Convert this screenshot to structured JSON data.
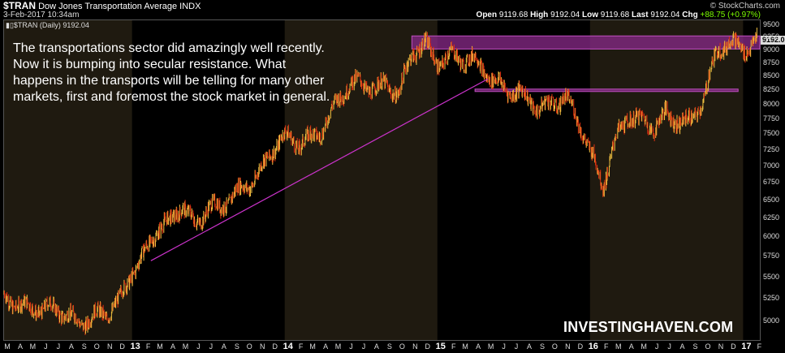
{
  "header": {
    "symbol": "$TRAN",
    "name": "Dow Jones Transportation Average",
    "exchange": "INDX",
    "date": "3-Feb-2017 10:34am",
    "brand": "© StockCharts.com",
    "open_label": "Open",
    "open": "9119.68",
    "high_label": "High",
    "high": "9192.04",
    "low_label": "Low",
    "low": "9119.68",
    "last_label": "Last",
    "last": "9192.04",
    "chg_label": "Chg",
    "chg": "+88.75 (+0.97%)"
  },
  "legend": "▮▯$TRAN (Daily) 9192.04",
  "annotation": "The transportations sector did amazingly well recently. Now it is bumping into secular resistance. What happens in the transports will be telling for many other markets, first and foremost the stock market in general.",
  "watermark": "INVESTINGHAVEN.COM",
  "last_value_box": "9192.0",
  "colors": {
    "background": "#000000",
    "shade": "#1f1a10",
    "bar_up": "#f0c040",
    "bar_down": "#e03010",
    "trendline": "#cc33cc",
    "resistance": "#8a2a8a"
  },
  "chart_data": {
    "type": "line",
    "title": "$TRAN (Daily)",
    "y_scale": "log",
    "ylim": [
      4800,
      9600
    ],
    "xlim": [
      "2012-03-01",
      "2017-02-10"
    ],
    "y_ticks": [
      5000,
      5250,
      5500,
      5750,
      6000,
      6250,
      6500,
      6750,
      7000,
      7250,
      7500,
      7750,
      8000,
      8250,
      8500,
      8750,
      9000,
      9250,
      9500
    ],
    "x_ticks": [
      {
        "label": "M",
        "date": "2012-03-01"
      },
      {
        "label": "A",
        "date": "2012-04-01"
      },
      {
        "label": "M",
        "date": "2012-05-01"
      },
      {
        "label": "J",
        "date": "2012-06-01"
      },
      {
        "label": "J",
        "date": "2012-07-01"
      },
      {
        "label": "A",
        "date": "2012-08-01"
      },
      {
        "label": "S",
        "date": "2012-09-01"
      },
      {
        "label": "O",
        "date": "2012-10-01"
      },
      {
        "label": "N",
        "date": "2012-11-01"
      },
      {
        "label": "D",
        "date": "2012-12-01"
      },
      {
        "label": "13",
        "date": "2013-01-01",
        "year": true
      },
      {
        "label": "F",
        "date": "2013-02-01"
      },
      {
        "label": "M",
        "date": "2013-03-01"
      },
      {
        "label": "A",
        "date": "2013-04-01"
      },
      {
        "label": "M",
        "date": "2013-05-01"
      },
      {
        "label": "J",
        "date": "2013-06-01"
      },
      {
        "label": "J",
        "date": "2013-07-01"
      },
      {
        "label": "A",
        "date": "2013-08-01"
      },
      {
        "label": "S",
        "date": "2013-09-01"
      },
      {
        "label": "O",
        "date": "2013-10-01"
      },
      {
        "label": "N",
        "date": "2013-11-01"
      },
      {
        "label": "D",
        "date": "2013-12-01"
      },
      {
        "label": "14",
        "date": "2014-01-01",
        "year": true
      },
      {
        "label": "F",
        "date": "2014-02-01"
      },
      {
        "label": "M",
        "date": "2014-03-01"
      },
      {
        "label": "A",
        "date": "2014-04-01"
      },
      {
        "label": "M",
        "date": "2014-05-01"
      },
      {
        "label": "J",
        "date": "2014-06-01"
      },
      {
        "label": "J",
        "date": "2014-07-01"
      },
      {
        "label": "A",
        "date": "2014-08-01"
      },
      {
        "label": "S",
        "date": "2014-09-01"
      },
      {
        "label": "O",
        "date": "2014-10-01"
      },
      {
        "label": "N",
        "date": "2014-11-01"
      },
      {
        "label": "D",
        "date": "2014-12-01"
      },
      {
        "label": "15",
        "date": "2015-01-01",
        "year": true
      },
      {
        "label": "F",
        "date": "2015-02-01"
      },
      {
        "label": "M",
        "date": "2015-03-01"
      },
      {
        "label": "A",
        "date": "2015-04-01"
      },
      {
        "label": "M",
        "date": "2015-05-01"
      },
      {
        "label": "J",
        "date": "2015-06-01"
      },
      {
        "label": "J",
        "date": "2015-07-01"
      },
      {
        "label": "A",
        "date": "2015-08-01"
      },
      {
        "label": "S",
        "date": "2015-09-01"
      },
      {
        "label": "O",
        "date": "2015-10-01"
      },
      {
        "label": "N",
        "date": "2015-11-01"
      },
      {
        "label": "D",
        "date": "2015-12-01"
      },
      {
        "label": "16",
        "date": "2016-01-01",
        "year": true
      },
      {
        "label": "F",
        "date": "2016-02-01"
      },
      {
        "label": "M",
        "date": "2016-03-01"
      },
      {
        "label": "A",
        "date": "2016-04-01"
      },
      {
        "label": "M",
        "date": "2016-05-01"
      },
      {
        "label": "J",
        "date": "2016-06-01"
      },
      {
        "label": "J",
        "date": "2016-07-01"
      },
      {
        "label": "A",
        "date": "2016-08-01"
      },
      {
        "label": "S",
        "date": "2016-09-01"
      },
      {
        "label": "O",
        "date": "2016-10-01"
      },
      {
        "label": "N",
        "date": "2016-11-01"
      },
      {
        "label": "D",
        "date": "2016-12-01"
      },
      {
        "label": "17",
        "date": "2017-01-01",
        "year": true
      },
      {
        "label": "F",
        "date": "2017-02-01"
      }
    ],
    "shaded_years": [
      [
        "2012-03-01",
        "2013-01-01"
      ],
      [
        "2014-01-01",
        "2015-01-01"
      ],
      [
        "2016-01-01",
        "2017-01-01"
      ]
    ],
    "series": [
      {
        "points": [
          [
            "2012-03-01",
            5300
          ],
          [
            "2012-04-01",
            5280
          ],
          [
            "2012-05-01",
            5150
          ],
          [
            "2012-06-01",
            5050
          ],
          [
            "2012-07-01",
            5100
          ],
          [
            "2012-08-01",
            5120
          ],
          [
            "2012-09-01",
            5050
          ],
          [
            "2012-10-01",
            5030
          ],
          [
            "2012-11-01",
            5000
          ],
          [
            "2012-12-01",
            5200
          ],
          [
            "2013-01-01",
            5650
          ],
          [
            "2013-02-01",
            5850
          ],
          [
            "2013-03-01",
            6050
          ],
          [
            "2013-04-01",
            6100
          ],
          [
            "2013-05-01",
            6450
          ],
          [
            "2013-06-01",
            6250
          ],
          [
            "2013-07-01",
            6450
          ],
          [
            "2013-08-01",
            6300
          ],
          [
            "2013-09-01",
            6500
          ],
          [
            "2013-10-01",
            6750
          ],
          [
            "2013-11-01",
            7000
          ],
          [
            "2013-12-01",
            7250
          ],
          [
            "2014-01-01",
            7350
          ],
          [
            "2014-02-01",
            7300
          ],
          [
            "2014-03-01",
            7500
          ],
          [
            "2014-04-01",
            7700
          ],
          [
            "2014-05-01",
            7950
          ],
          [
            "2014-06-01",
            8200
          ],
          [
            "2014-07-01",
            8350
          ],
          [
            "2014-08-01",
            8400
          ],
          [
            "2014-09-01",
            8450
          ],
          [
            "2014-10-01",
            8100
          ],
          [
            "2014-11-01",
            8800
          ],
          [
            "2014-12-01",
            9150
          ],
          [
            "2015-01-01",
            8900
          ],
          [
            "2015-02-01",
            8950
          ],
          [
            "2015-03-01",
            8700
          ],
          [
            "2015-04-01",
            8700
          ],
          [
            "2015-05-01",
            8600
          ],
          [
            "2015-06-01",
            8450
          ],
          [
            "2015-07-01",
            8250
          ],
          [
            "2015-08-01",
            8000
          ],
          [
            "2015-09-01",
            7850
          ],
          [
            "2015-10-01",
            8100
          ],
          [
            "2015-11-01",
            8250
          ],
          [
            "2015-12-01",
            7750
          ],
          [
            "2016-01-01",
            7100
          ],
          [
            "2016-02-01",
            6700
          ],
          [
            "2016-03-01",
            7500
          ],
          [
            "2016-04-01",
            7900
          ],
          [
            "2016-05-01",
            7650
          ],
          [
            "2016-06-01",
            7500
          ],
          [
            "2016-07-01",
            7850
          ],
          [
            "2016-08-01",
            7850
          ],
          [
            "2016-09-01",
            7750
          ],
          [
            "2016-10-01",
            8050
          ],
          [
            "2016-11-01",
            8900
          ],
          [
            "2016-12-01",
            9250
          ],
          [
            "2017-01-01",
            9150
          ],
          [
            "2017-02-03",
            9192.04
          ]
        ]
      }
    ],
    "trendline": [
      [
        "2013-02-15",
        5700
      ],
      [
        "2015-05-01",
        8450
      ]
    ],
    "resistance_zones": [
      {
        "from": "2014-11-01",
        "to": "2017-02-10",
        "low": 9020,
        "high": 9280
      },
      {
        "from": "2015-04-01",
        "to": "2016-12-20",
        "low": 8230,
        "high": 8270
      }
    ]
  }
}
